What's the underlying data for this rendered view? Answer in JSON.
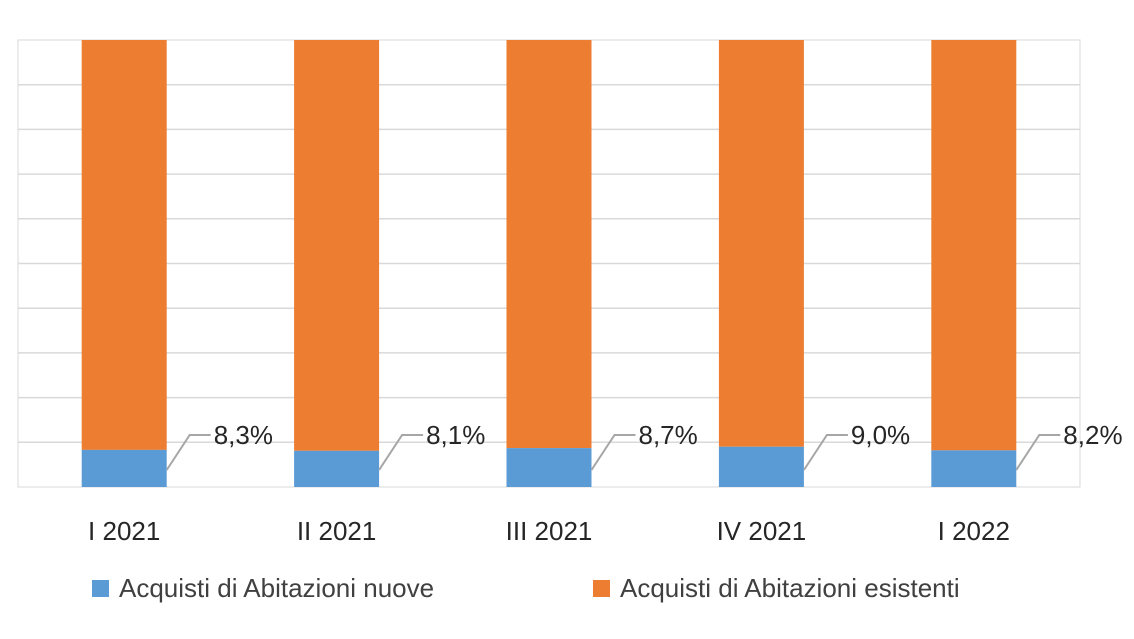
{
  "chart_data": {
    "type": "bar",
    "stacked": true,
    "percent_stacked": true,
    "categories": [
      "I 2021",
      "II 2021",
      "III 2021",
      "IV 2021",
      "I 2022"
    ],
    "series": [
      {
        "name": "Acquisti di Abitazioni nuove",
        "color": "#5b9bd5",
        "values": [
          8.3,
          8.1,
          8.7,
          9.0,
          8.2
        ]
      },
      {
        "name": "Acquisti di Abitazioni esistenti",
        "color": "#ed7d31",
        "values": [
          91.7,
          91.9,
          91.3,
          91.0,
          91.8
        ]
      }
    ],
    "data_labels": [
      "8,3%",
      "8,1%",
      "8,7%",
      "9,0%",
      "8,2%"
    ],
    "ylim": [
      0,
      100
    ],
    "grid": true,
    "legend_position": "bottom",
    "title": "",
    "xlabel": "",
    "ylabel": ""
  }
}
